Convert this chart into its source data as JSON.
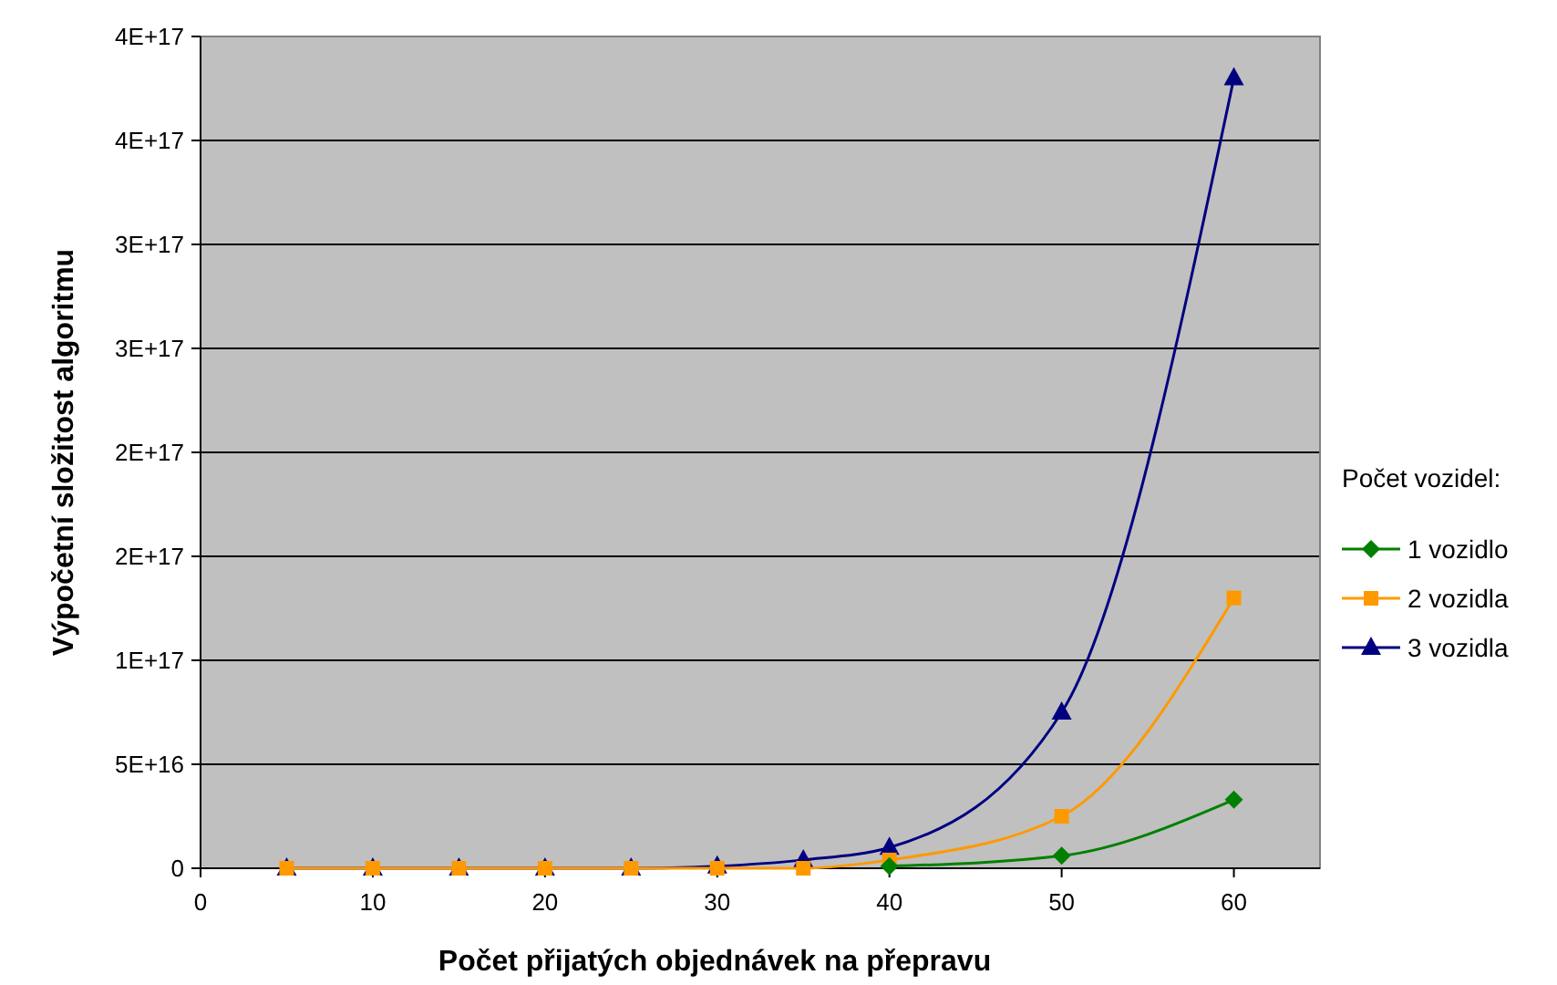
{
  "chart_data": {
    "type": "line",
    "xlabel": "Počet přijatých objednávek na přepravu",
    "ylabel": "Výpočetní složitost algoritmu",
    "legend_title": "Počet vozidel:",
    "x": [
      5,
      10,
      15,
      20,
      25,
      30,
      35,
      40,
      50,
      60
    ],
    "series": [
      {
        "name": "1 vozidlo",
        "color": "#008000",
        "marker": "diamond",
        "values": [
          null,
          null,
          null,
          null,
          null,
          null,
          null,
          1000000000000000.0,
          6000000000000000.0,
          3.3e+16
        ]
      },
      {
        "name": "2 vozidla",
        "color": "#ff9900",
        "marker": "square",
        "values": [
          0,
          0,
          0,
          0,
          0,
          0,
          0,
          4000000000000000.0,
          2.5e+16,
          1.3e+17
        ]
      },
      {
        "name": "3 vozidla",
        "color": "#000080",
        "marker": "triangle",
        "values": [
          0,
          0,
          0,
          0,
          0,
          1000000000000000.0,
          4000000000000000.0,
          1e+16,
          7.5e+16,
          3.8e+17
        ]
      }
    ],
    "xlim": [
      0,
      65
    ],
    "xticks": [
      0,
      10,
      20,
      30,
      40,
      50,
      60
    ],
    "ylim": [
      0,
      4e+17
    ],
    "yticks": [
      0,
      {
        "value": 5e+16,
        "label": "5E+16"
      },
      {
        "value": 1e+17,
        "label": "1E+17"
      },
      {
        "value": 1.5e+17,
        "label": "2E+17"
      },
      {
        "value": 2e+17,
        "label": "2E+17"
      },
      {
        "value": 2.5e+17,
        "label": "3E+17"
      },
      {
        "value": 3e+17,
        "label": "3E+17"
      },
      {
        "value": 3.5e+17,
        "label": "4E+17"
      },
      {
        "value": 4e+17,
        "label": "4E+17"
      }
    ],
    "grid": "y",
    "legend": "right"
  }
}
